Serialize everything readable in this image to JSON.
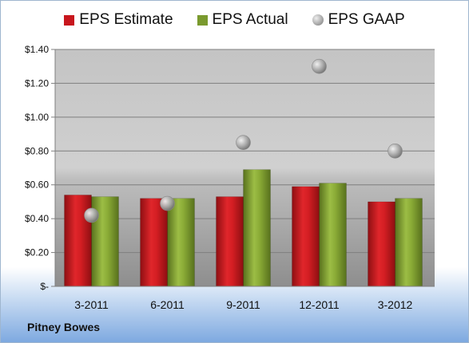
{
  "company": "Pitney Bowes",
  "colors": {
    "estimate": "#c8161d",
    "actual": "#7a9a2e",
    "gaap": "#a8a8a8"
  },
  "chart_data": {
    "type": "bar",
    "categories": [
      "3-2011",
      "6-2011",
      "9-2011",
      "12-2011",
      "3-2012"
    ],
    "series": [
      {
        "name": "EPS Estimate",
        "kind": "bar",
        "values": [
          0.54,
          0.52,
          0.53,
          0.59,
          0.5
        ]
      },
      {
        "name": "EPS Actual",
        "kind": "bar",
        "values": [
          0.53,
          0.52,
          0.69,
          0.61,
          0.52
        ]
      },
      {
        "name": "EPS GAAP",
        "kind": "marker",
        "values": [
          0.42,
          0.49,
          0.85,
          1.3,
          0.8
        ]
      }
    ],
    "ylim": [
      0,
      1.4
    ],
    "yticks": [
      0,
      0.2,
      0.4,
      0.6,
      0.8,
      1.0,
      1.2,
      1.4
    ],
    "ytick_labels": [
      "$-",
      "$0.20",
      "$0.40",
      "$0.60",
      "$0.80",
      "$1.00",
      "$1.20",
      "$1.40"
    ],
    "grid": true,
    "legend": "top"
  }
}
